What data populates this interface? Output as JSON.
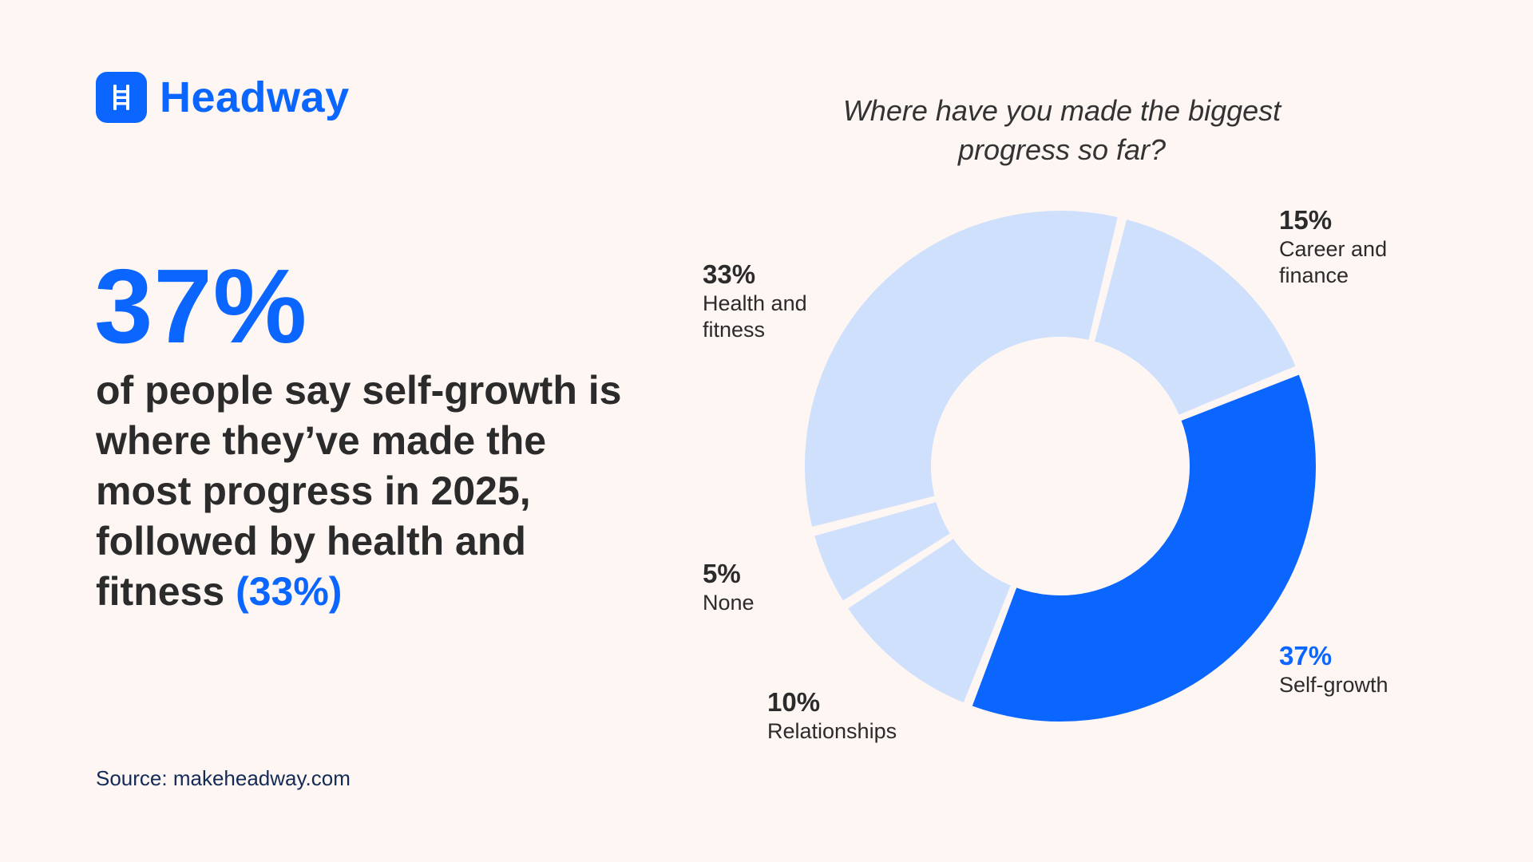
{
  "brand": {
    "name": "Headway",
    "accent_color": "#0a66ff",
    "logo_icon": "ladder-icon"
  },
  "headline": {
    "big_stat": "37%",
    "text": "of people say self-growth is where they’ve made the most progress in 2025, followed by health and fitness",
    "highlight": "(33%)"
  },
  "source": "Source: makeheadway.com",
  "chart_data": {
    "type": "pie",
    "subtype": "donut",
    "title": "Where have you made the biggest progress so far?",
    "categories": [
      "Self-growth",
      "Relationships",
      "None",
      "Health and fitness",
      "Career and finance"
    ],
    "values": [
      37,
      10,
      5,
      33,
      15
    ],
    "labels": [
      "37%",
      "10%",
      "5%",
      "33%",
      "15%"
    ],
    "colors": [
      "#0a66ff",
      "#cfe0fc",
      "#cfe0fc",
      "#cfe0fc",
      "#cfe0fc"
    ],
    "highlighted": "Self-growth"
  }
}
